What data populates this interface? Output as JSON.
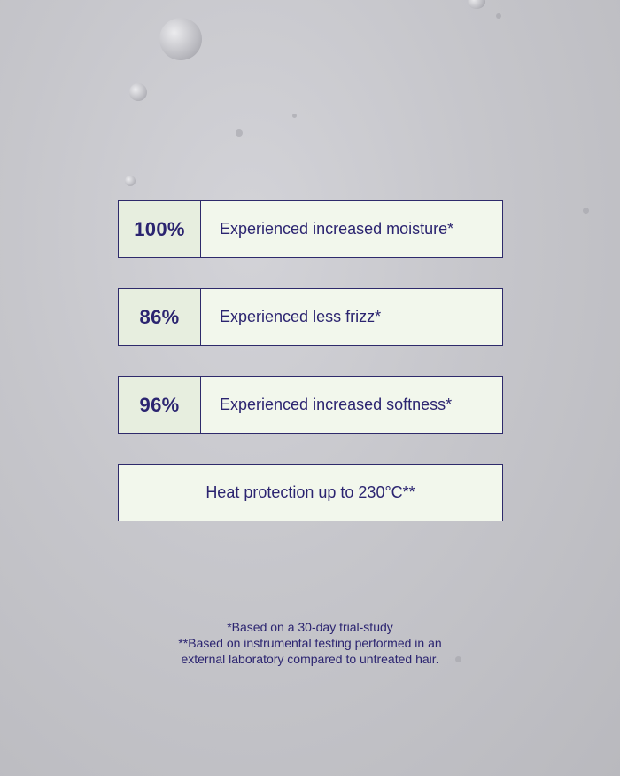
{
  "colors": {
    "text": "#2b2470",
    "border": "#2e2a6b",
    "stat_bg": "#e7eedf",
    "label_bg": "#f2f7ec"
  },
  "stats": [
    {
      "value": "100%",
      "label": "Experienced increased moisture*"
    },
    {
      "value": "86%",
      "label": "Experienced less frizz*"
    },
    {
      "value": "96%",
      "label": "Experienced increased softness*"
    }
  ],
  "heat": "Heat protection up to 230°C**",
  "footnotes": [
    "*Based on a 30-day trial-study",
    "**Based on instrumental testing performed in an",
    "external laboratory compared to untreated hair."
  ]
}
